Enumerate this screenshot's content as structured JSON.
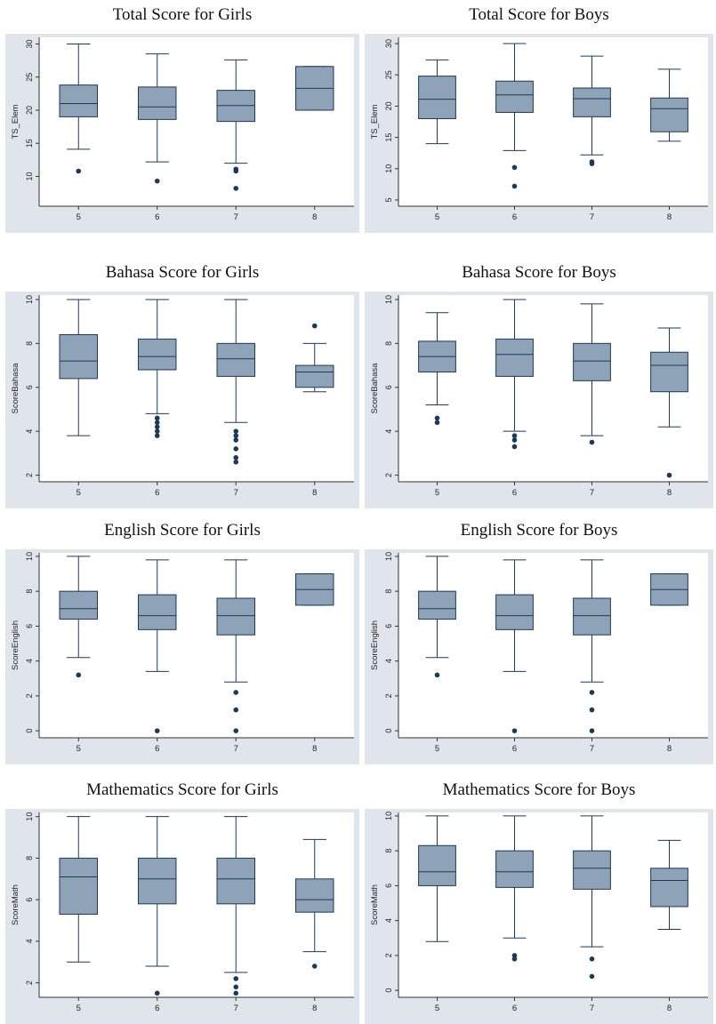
{
  "colors": {
    "background": "#dfe5ea",
    "box_fill": "#8ea2b8",
    "box_stroke": "#1b3a5a",
    "outlier": "#1b3a5a",
    "plot_bg": "#ffffff"
  },
  "chart_data": [
    {
      "type": "box",
      "title": "Total Score for Girls",
      "ylabel": "TS_Elem",
      "xlabel": "",
      "categories": [
        "5",
        "6",
        "7",
        "8"
      ],
      "ylim": [
        5.5,
        31
      ],
      "yticks": [
        10,
        15,
        20,
        25,
        30
      ],
      "grid": false,
      "boxes": [
        {
          "cat": "5",
          "min": 14.1,
          "q1": 19.0,
          "median": 21.0,
          "q3": 23.8,
          "max": 30.0,
          "outliers": [
            10.8
          ]
        },
        {
          "cat": "6",
          "min": 12.2,
          "q1": 18.6,
          "median": 20.5,
          "q3": 23.5,
          "max": 28.5,
          "outliers": [
            9.3
          ]
        },
        {
          "cat": "7",
          "min": 12.0,
          "q1": 18.3,
          "median": 20.7,
          "q3": 23.0,
          "max": 27.6,
          "outliers": [
            11.1,
            10.8,
            8.2
          ]
        },
        {
          "cat": "8",
          "min": 20.0,
          "q1": 20.0,
          "median": 23.3,
          "q3": 26.6,
          "max": 26.6,
          "outliers": []
        }
      ]
    },
    {
      "type": "box",
      "title": "Total Score for Boys",
      "ylabel": "TS_Elem",
      "xlabel": "",
      "categories": [
        "5",
        "6",
        "7",
        "8"
      ],
      "ylim": [
        4,
        31
      ],
      "yticks": [
        5,
        10,
        15,
        20,
        25,
        30
      ],
      "grid": false,
      "boxes": [
        {
          "cat": "5",
          "min": 14.0,
          "q1": 18.0,
          "median": 21.1,
          "q3": 24.8,
          "max": 27.4,
          "outliers": []
        },
        {
          "cat": "6",
          "min": 12.9,
          "q1": 19.0,
          "median": 21.8,
          "q3": 24.0,
          "max": 30.0,
          "outliers": [
            10.2,
            7.2
          ]
        },
        {
          "cat": "7",
          "min": 12.2,
          "q1": 18.3,
          "median": 21.2,
          "q3": 22.9,
          "max": 28.0,
          "outliers": [
            11.1,
            10.8
          ]
        },
        {
          "cat": "8",
          "min": 14.4,
          "q1": 15.9,
          "median": 19.6,
          "q3": 21.3,
          "max": 25.9,
          "outliers": []
        }
      ]
    },
    {
      "type": "box",
      "title": "Bahasa Score for Girls",
      "ylabel": "ScoreBahasa",
      "xlabel": "",
      "categories": [
        "5",
        "6",
        "7",
        "8"
      ],
      "ylim": [
        1.7,
        10.2
      ],
      "yticks": [
        2,
        4,
        6,
        8,
        10
      ],
      "grid": false,
      "boxes": [
        {
          "cat": "5",
          "min": 3.8,
          "q1": 6.4,
          "median": 7.2,
          "q3": 8.4,
          "max": 10.0,
          "outliers": []
        },
        {
          "cat": "6",
          "min": 4.8,
          "q1": 6.8,
          "median": 7.4,
          "q3": 8.2,
          "max": 10.0,
          "outliers": [
            4.6,
            4.4,
            4.2,
            4.0,
            3.8
          ]
        },
        {
          "cat": "7",
          "min": 4.4,
          "q1": 6.5,
          "median": 7.3,
          "q3": 8.0,
          "max": 10.0,
          "outliers": [
            4.0,
            3.8,
            3.6,
            3.2,
            2.8,
            2.6
          ]
        },
        {
          "cat": "8",
          "min": 5.8,
          "q1": 6.0,
          "median": 6.7,
          "q3": 7.0,
          "max": 8.0,
          "outliers": [
            8.8
          ]
        }
      ]
    },
    {
      "type": "box",
      "title": "Bahasa Score for Boys",
      "ylabel": "ScoreBahasa",
      "xlabel": "",
      "categories": [
        "5",
        "6",
        "7",
        "8"
      ],
      "ylim": [
        1.7,
        10.2
      ],
      "yticks": [
        2,
        4,
        6,
        8,
        10
      ],
      "grid": false,
      "boxes": [
        {
          "cat": "5",
          "min": 5.2,
          "q1": 6.7,
          "median": 7.4,
          "q3": 8.1,
          "max": 9.4,
          "outliers": [
            4.6,
            4.4
          ]
        },
        {
          "cat": "6",
          "min": 4.0,
          "q1": 6.5,
          "median": 7.5,
          "q3": 8.2,
          "max": 10.0,
          "outliers": [
            3.8,
            3.6,
            3.3
          ]
        },
        {
          "cat": "7",
          "min": 3.8,
          "q1": 6.3,
          "median": 7.2,
          "q3": 8.0,
          "max": 9.8,
          "outliers": [
            3.5
          ]
        },
        {
          "cat": "8",
          "min": 4.2,
          "q1": 5.8,
          "median": 7.0,
          "q3": 7.6,
          "max": 8.7,
          "outliers": [
            2.0
          ]
        }
      ]
    },
    {
      "type": "box",
      "title": "English Score for Girls",
      "ylabel": "ScoreEnglish",
      "xlabel": "",
      "categories": [
        "5",
        "6",
        "7",
        "8"
      ],
      "ylim": [
        -0.4,
        10.2
      ],
      "yticks": [
        0,
        2,
        4,
        6,
        8,
        10
      ],
      "grid": false,
      "boxes": [
        {
          "cat": "5",
          "min": 4.2,
          "q1": 6.4,
          "median": 7.0,
          "q3": 8.0,
          "max": 10.0,
          "outliers": [
            3.2
          ]
        },
        {
          "cat": "6",
          "min": 3.4,
          "q1": 5.8,
          "median": 6.6,
          "q3": 7.8,
          "max": 9.8,
          "outliers": [
            0.0
          ]
        },
        {
          "cat": "7",
          "min": 2.8,
          "q1": 5.5,
          "median": 6.6,
          "q3": 7.6,
          "max": 9.8,
          "outliers": [
            2.2,
            1.2,
            0.0
          ]
        },
        {
          "cat": "8",
          "min": 7.2,
          "q1": 7.2,
          "median": 8.1,
          "q3": 9.0,
          "max": 9.0,
          "outliers": []
        }
      ]
    },
    {
      "type": "box",
      "title": "English Score for Boys",
      "ylabel": "ScoreEnglish",
      "xlabel": "",
      "categories": [
        "5",
        "6",
        "7",
        "8"
      ],
      "ylim": [
        -0.4,
        10.2
      ],
      "yticks": [
        0,
        2,
        4,
        6,
        8,
        10
      ],
      "grid": false,
      "boxes": [
        {
          "cat": "5",
          "min": 4.2,
          "q1": 6.4,
          "median": 7.0,
          "q3": 8.0,
          "max": 10.0,
          "outliers": [
            3.2
          ]
        },
        {
          "cat": "6",
          "min": 3.4,
          "q1": 5.8,
          "median": 6.6,
          "q3": 7.8,
          "max": 9.8,
          "outliers": [
            0.0
          ]
        },
        {
          "cat": "7",
          "min": 2.8,
          "q1": 5.5,
          "median": 6.6,
          "q3": 7.6,
          "max": 9.8,
          "outliers": [
            2.2,
            1.2,
            0.0
          ]
        },
        {
          "cat": "8",
          "min": 7.2,
          "q1": 7.2,
          "median": 8.1,
          "q3": 9.0,
          "max": 9.0,
          "outliers": []
        }
      ]
    },
    {
      "type": "box",
      "title": "Mathematics Score for Girls",
      "ylabel": "ScoreMath",
      "xlabel": "",
      "categories": [
        "5",
        "6",
        "7",
        "8"
      ],
      "ylim": [
        1.3,
        10.2
      ],
      "yticks": [
        2,
        4,
        6,
        8,
        10
      ],
      "grid": false,
      "boxes": [
        {
          "cat": "5",
          "min": 3.0,
          "q1": 5.3,
          "median": 7.1,
          "q3": 8.0,
          "max": 10.0,
          "outliers": []
        },
        {
          "cat": "6",
          "min": 2.8,
          "q1": 5.8,
          "median": 7.0,
          "q3": 8.0,
          "max": 10.0,
          "outliers": [
            1.5
          ]
        },
        {
          "cat": "7",
          "min": 2.5,
          "q1": 5.8,
          "median": 7.0,
          "q3": 8.0,
          "max": 10.0,
          "outliers": [
            2.2,
            1.8,
            1.5
          ]
        },
        {
          "cat": "8",
          "min": 3.5,
          "q1": 5.4,
          "median": 6.0,
          "q3": 7.0,
          "max": 8.9,
          "outliers": [
            2.8
          ]
        }
      ]
    },
    {
      "type": "box",
      "title": "Mathematics Score for Boys",
      "ylabel": "ScoreMath",
      "xlabel": "",
      "categories": [
        "5",
        "6",
        "7",
        "8"
      ],
      "ylim": [
        -0.4,
        10.2
      ],
      "yticks": [
        0,
        2,
        4,
        6,
        8,
        10
      ],
      "grid": false,
      "boxes": [
        {
          "cat": "5",
          "min": 2.8,
          "q1": 6.0,
          "median": 6.8,
          "q3": 8.3,
          "max": 10.0,
          "outliers": []
        },
        {
          "cat": "6",
          "min": 3.0,
          "q1": 5.9,
          "median": 6.8,
          "q3": 8.0,
          "max": 10.0,
          "outliers": [
            2.0,
            1.8
          ]
        },
        {
          "cat": "7",
          "min": 2.5,
          "q1": 5.8,
          "median": 7.0,
          "q3": 8.0,
          "max": 10.0,
          "outliers": [
            1.8,
            0.8
          ]
        },
        {
          "cat": "8",
          "min": 3.5,
          "q1": 4.8,
          "median": 6.3,
          "q3": 7.0,
          "max": 8.6,
          "outliers": []
        }
      ]
    }
  ]
}
